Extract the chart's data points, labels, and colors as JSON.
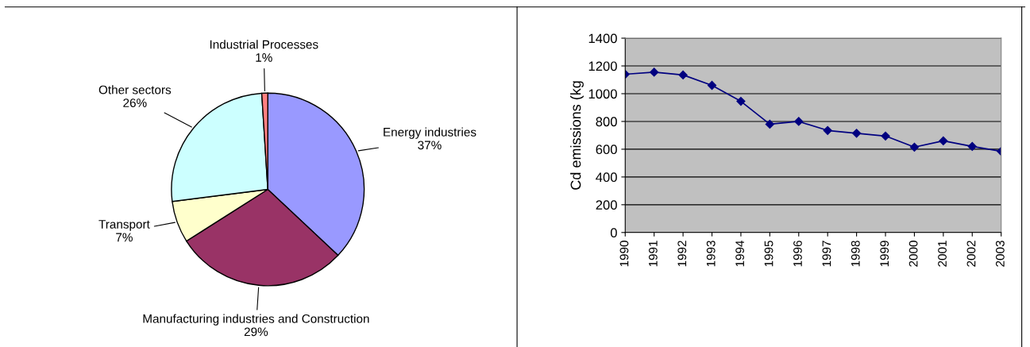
{
  "chart_data": [
    {
      "type": "pie",
      "categories": [
        "Energy industries",
        "Manufacturing industries and Construction",
        "Transport",
        "Other sectors",
        "Industrial Processes"
      ],
      "values": [
        37,
        29,
        7,
        26,
        1
      ],
      "colors": [
        "#9999ff",
        "#993366",
        "#ffffcc",
        "#ccffff",
        "#ff8080"
      ],
      "value_labels": [
        "37%",
        "29%",
        "7%",
        "26%",
        "1%"
      ]
    },
    {
      "type": "line",
      "ylabel": "Cd emissions (kg",
      "categories": [
        "1990",
        "1991",
        "1992",
        "1993",
        "1994",
        "1995",
        "1996",
        "1997",
        "1998",
        "1999",
        "2000",
        "2001",
        "2002",
        "2003"
      ],
      "series": [
        {
          "color": "#000080",
          "values": [
            1140,
            1155,
            1135,
            1060,
            945,
            780,
            800,
            735,
            715,
            695,
            615,
            660,
            620,
            585
          ]
        }
      ],
      "ylim": [
        0,
        1400
      ],
      "yticks": [
        0,
        200,
        400,
        600,
        800,
        1000,
        1200,
        1400
      ],
      "grid": "y",
      "marker": "diamond",
      "line_style": "solid",
      "legend": false
    }
  ]
}
